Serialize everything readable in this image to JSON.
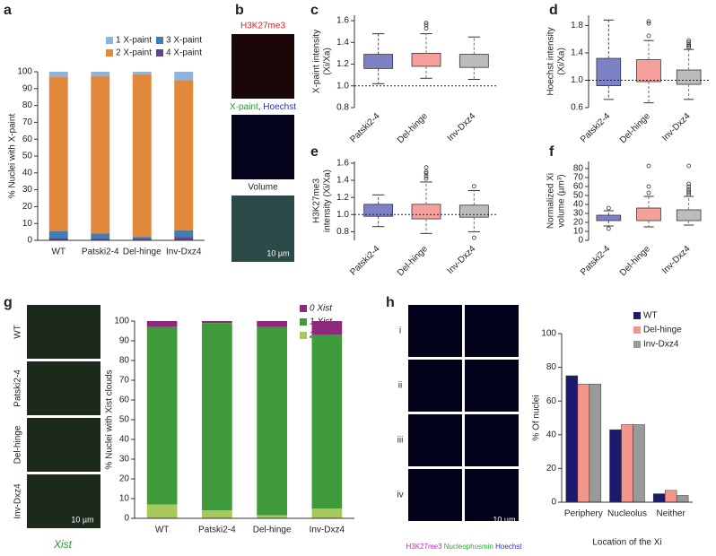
{
  "chart_data": [
    {
      "label": "a",
      "type": "bar",
      "stacked": true,
      "ylabel": [
        "% Nuclei with X-paint"
      ],
      "categories": [
        "WT",
        "Patski2-4",
        "Del-hinge",
        "Inv-Dxz4"
      ],
      "series": [
        {
          "name": "1 X-paint",
          "color": "#8fb4dc",
          "values": [
            3,
            2.5,
            1.5,
            5
          ]
        },
        {
          "name": "2 X-paint",
          "color": "#e2883a",
          "values": [
            91.5,
            93.5,
            96.5,
            89
          ]
        },
        {
          "name": "3 X-paint",
          "color": "#3f7fb6",
          "values": [
            4,
            3,
            1,
            4
          ]
        },
        {
          "name": "4 X-paint",
          "color": "#5b4a8b",
          "values": [
            1.5,
            1,
            1,
            2
          ]
        }
      ],
      "ylim": [
        0,
        100
      ],
      "yticks": [
        0,
        10,
        20,
        30,
        40,
        50,
        60,
        70,
        80,
        90,
        100
      ]
    },
    {
      "label": "c",
      "type": "box",
      "ylabel": [
        "X-paint intensity",
        "(Xi/Xa)"
      ],
      "categories": [
        "Patski2-4",
        "Del-hinge",
        "Inv-Dxz4"
      ],
      "colors": [
        "#7d81c6",
        "#f4a19d",
        "#bcbcbc"
      ],
      "boxes": [
        {
          "whisker_low": 1.02,
          "q1": 1.16,
          "median": 1.23,
          "q3": 1.29,
          "whisker_high": 1.48,
          "outliers": []
        },
        {
          "whisker_low": 1.07,
          "q1": 1.18,
          "median": 1.24,
          "q3": 1.3,
          "whisker_high": 1.48,
          "outliers": [
            1.53,
            1.56,
            1.58
          ]
        },
        {
          "whisker_low": 1.06,
          "q1": 1.17,
          "median": 1.23,
          "q3": 1.29,
          "whisker_high": 1.45,
          "outliers": []
        }
      ],
      "reference_line": 1,
      "ylim": [
        0.8,
        1.65
      ],
      "yticks": [
        0.8,
        {
          "value": 1,
          "label": "1.0"
        },
        1.2,
        1.4,
        1.6
      ]
    },
    {
      "label": "d",
      "type": "box",
      "ylabel": [
        "Hoechst intensity",
        "(Xi/Xa)"
      ],
      "categories": [
        "Patski2-4",
        "Del-hinge",
        "Inv-Dxz4"
      ],
      "colors": [
        "#7d81c6",
        "#f4a19d",
        "#bcbcbc"
      ],
      "boxes": [
        {
          "whisker_low": 0.72,
          "q1": 0.92,
          "median": 1.05,
          "q3": 1.32,
          "whisker_high": 1.88,
          "outliers": []
        },
        {
          "whisker_low": 0.67,
          "q1": 0.98,
          "median": 1.1,
          "q3": 1.3,
          "whisker_high": 1.58,
          "outliers": [
            1.65,
            1.83,
            1.86
          ]
        },
        {
          "whisker_low": 0.72,
          "q1": 0.94,
          "median": 1.03,
          "q3": 1.15,
          "whisker_high": 1.45,
          "outliers": [
            1.48,
            1.5,
            1.52,
            1.55,
            1.58
          ]
        }
      ],
      "reference_line": 1,
      "ylim": [
        0.6,
        1.95
      ],
      "yticks": [
        0.6,
        {
          "value": 1,
          "label": "1.0"
        },
        1.4,
        1.8
      ]
    },
    {
      "label": "e",
      "type": "box",
      "ylabel": [
        "H3K27me3",
        "intensity (Xi/Xa)"
      ],
      "categories": [
        "Patski2-4",
        "Del-hinge",
        "Inv-Dxz4"
      ],
      "colors": [
        "#7d81c6",
        "#f4a19d",
        "#bcbcbc"
      ],
      "boxes": [
        {
          "whisker_low": 0.86,
          "q1": 0.98,
          "median": 1.05,
          "q3": 1.12,
          "whisker_high": 1.23,
          "outliers": []
        },
        {
          "whisker_low": 0.78,
          "q1": 0.95,
          "median": 1.03,
          "q3": 1.12,
          "whisker_high": 1.38,
          "outliers": [
            1.42,
            1.45,
            1.48,
            1.5,
            1.55
          ]
        },
        {
          "whisker_low": 0.8,
          "q1": 0.97,
          "median": 1.04,
          "q3": 1.11,
          "whisker_high": 1.28,
          "outliers": [
            1.33,
            0.73
          ]
        }
      ],
      "reference_line": 1,
      "ylim": [
        0.7,
        1.62
      ],
      "yticks": [
        0.8,
        {
          "value": 1,
          "label": "1.0"
        },
        1.2,
        1.4,
        1.6
      ]
    },
    {
      "label": "f",
      "type": "box",
      "ylabel": [
        "Normalized Xi",
        "volume (µm³)"
      ],
      "categories": [
        "Patski2-4",
        "Del-hinge",
        "Inv-Dxz4"
      ],
      "colors": [
        "#7d81c6",
        "#f4a19d",
        "#bcbcbc"
      ],
      "boxes": [
        {
          "whisker_low": 16,
          "q1": 22,
          "median": 25,
          "q3": 28,
          "whisker_high": 33,
          "outliers": [
            36,
            13
          ]
        },
        {
          "whisker_low": 15,
          "q1": 22,
          "median": 28,
          "q3": 36,
          "whisker_high": 49,
          "outliers": [
            53,
            60,
            83
          ]
        },
        {
          "whisker_low": 17,
          "q1": 22,
          "median": 28,
          "q3": 34,
          "whisker_high": 49,
          "outliers": [
            51,
            53,
            55,
            57,
            60,
            63,
            83
          ]
        }
      ],
      "ylim": [
        0,
        88
      ],
      "yticks": [
        0,
        10,
        20,
        30,
        40,
        50,
        60,
        70,
        80
      ]
    },
    {
      "label": "g",
      "type": "bar",
      "stacked": true,
      "ylabel": [
        "% Nuclei with Xist clouds"
      ],
      "categories": [
        "WT",
        "Patski2-4",
        "Del-hinge",
        "Inv-Dxz4"
      ],
      "series": [
        {
          "name": "0 Xist",
          "color": "#8e2a7e",
          "values": [
            3,
            1,
            3,
            7
          ]
        },
        {
          "name": "1 Xist",
          "color": "#3f9a3c",
          "values": [
            90,
            95,
            95.5,
            88
          ]
        },
        {
          "name": "2 Xist",
          "color": "#a7c85a",
          "values": [
            7,
            4,
            1.5,
            5
          ]
        }
      ],
      "ylim": [
        0,
        100
      ],
      "yticks": [
        0,
        10,
        20,
        30,
        40,
        50,
        60,
        70,
        80,
        90,
        100
      ]
    },
    {
      "label": "h",
      "type": "bar",
      "stacked": false,
      "ylabel": [
        "% Of nuclei"
      ],
      "xlabel": "Location of the Xi",
      "categories": [
        "Periphery",
        "Nucleolus",
        "Neither"
      ],
      "series": [
        {
          "name": "WT",
          "color": "#1c1a6e",
          "values": [
            75,
            43,
            5
          ]
        },
        {
          "name": "Del-hinge",
          "color": "#f4958c",
          "values": [
            70,
            46,
            7
          ]
        },
        {
          "name": "Inv-Dxz4",
          "color": "#9a9a9a",
          "values": [
            70,
            46,
            4
          ]
        }
      ],
      "ylim": [
        0,
        100
      ],
      "yticks": [
        0,
        20,
        40,
        60,
        80,
        100
      ]
    }
  ],
  "images": {
    "b": {
      "label": "b",
      "captions": [
        [
          "H3K27me3"
        ],
        [
          "X-paint",
          ",",
          "Hoechst"
        ],
        [
          "Volume"
        ]
      ],
      "scale": "10 µm"
    },
    "g": {
      "scale": "10 µm",
      "caption": "Xist"
    },
    "h": {
      "rows": [
        "i",
        "ii",
        "iii",
        "iv"
      ],
      "stains": [
        "H3K27me3",
        "Nucleophosmin",
        "Hoechst"
      ],
      "scale": "10 µm"
    }
  }
}
